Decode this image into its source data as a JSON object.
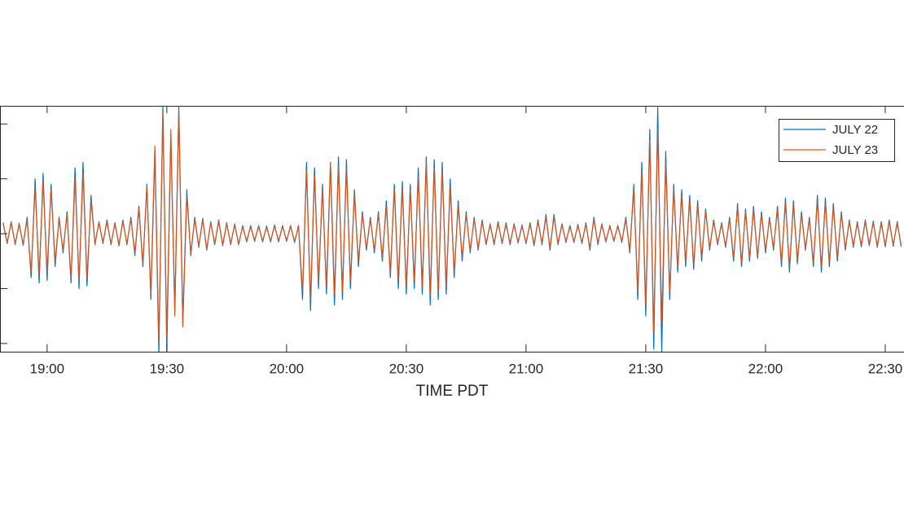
{
  "chart_data": {
    "type": "line",
    "xlabel": "TIME PDT",
    "xlim": [
      1128.2,
      1354.7
    ],
    "ylim": [
      -2.15,
      2.33
    ],
    "xticks": [
      {
        "value": 1140,
        "label": "19:00"
      },
      {
        "value": 1170,
        "label": "19:30"
      },
      {
        "value": 1200,
        "label": "20:00"
      },
      {
        "value": 1230,
        "label": "20:30"
      },
      {
        "value": 1260,
        "label": "21:00"
      },
      {
        "value": 1290,
        "label": "21:30"
      },
      {
        "value": 1320,
        "label": "22:00"
      },
      {
        "value": 1350,
        "label": "22:30"
      }
    ],
    "yticks": [
      -2,
      -1,
      0,
      1,
      2
    ],
    "legend": "northeast",
    "x": [
      1129,
      1130,
      1131,
      1132,
      1133,
      1134,
      1135,
      1136,
      1137,
      1138,
      1139,
      1140,
      1141,
      1142,
      1143,
      1144,
      1145,
      1146,
      1147,
      1148,
      1149,
      1150,
      1151,
      1152,
      1153,
      1154,
      1155,
      1156,
      1157,
      1158,
      1159,
      1160,
      1161,
      1162,
      1163,
      1164,
      1165,
      1166,
      1167,
      1168,
      1169,
      1170,
      1171,
      1172,
      1173,
      1174,
      1175,
      1176,
      1177,
      1178,
      1179,
      1180,
      1181,
      1182,
      1183,
      1184,
      1185,
      1186,
      1187,
      1188,
      1189,
      1190,
      1191,
      1192,
      1193,
      1194,
      1195,
      1196,
      1197,
      1198,
      1199,
      1200,
      1201,
      1202,
      1203,
      1204,
      1205,
      1206,
      1207,
      1208,
      1209,
      1210,
      1211,
      1212,
      1213,
      1214,
      1215,
      1216,
      1217,
      1218,
      1219,
      1220,
      1221,
      1222,
      1223,
      1224,
      1225,
      1226,
      1227,
      1228,
      1229,
      1230,
      1231,
      1232,
      1233,
      1234,
      1235,
      1236,
      1237,
      1238,
      1239,
      1240,
      1241,
      1242,
      1243,
      1244,
      1245,
      1246,
      1247,
      1248,
      1249,
      1250,
      1251,
      1252,
      1253,
      1254,
      1255,
      1256,
      1257,
      1258,
      1259,
      1260,
      1261,
      1262,
      1263,
      1264,
      1265,
      1266,
      1267,
      1268,
      1269,
      1270,
      1271,
      1272,
      1273,
      1274,
      1275,
      1276,
      1277,
      1278,
      1279,
      1280,
      1281,
      1282,
      1283,
      1284,
      1285,
      1286,
      1287,
      1288,
      1289,
      1290,
      1291,
      1292,
      1293,
      1294,
      1295,
      1296,
      1297,
      1298,
      1299,
      1300,
      1301,
      1302,
      1303,
      1304,
      1305,
      1306,
      1307,
      1308,
      1309,
      1310,
      1311,
      1312,
      1313,
      1314,
      1315,
      1316,
      1317,
      1318,
      1319,
      1320,
      1321,
      1322,
      1323,
      1324,
      1325,
      1326,
      1327,
      1328,
      1329,
      1330,
      1331,
      1332,
      1333,
      1334,
      1335,
      1336,
      1337,
      1338,
      1339,
      1340,
      1341,
      1342,
      1343,
      1344,
      1345,
      1346,
      1347,
      1348,
      1349,
      1350,
      1351,
      1352,
      1353,
      1354
    ],
    "series": [
      {
        "name": "JULY 22",
        "color": "#0072BD",
        "values": [
          0.2,
          -0.18,
          0.22,
          -0.2,
          0.19,
          -0.21,
          0.3,
          -0.8,
          1.0,
          -0.9,
          1.1,
          -0.85,
          0.9,
          -0.6,
          0.3,
          -0.35,
          0.4,
          -0.9,
          1.2,
          -1.0,
          1.3,
          -0.95,
          0.7,
          -0.2,
          0.22,
          -0.18,
          0.25,
          -0.2,
          0.2,
          -0.22,
          0.25,
          -0.2,
          0.3,
          -0.4,
          0.5,
          -0.6,
          0.9,
          -1.2,
          1.5,
          -2.2,
          2.33,
          -2.15,
          1.8,
          -1.4,
          2.33,
          -1.6,
          0.8,
          -0.4,
          0.3,
          -0.25,
          0.28,
          -0.3,
          0.22,
          -0.2,
          0.25,
          -0.22,
          0.2,
          -0.2,
          0.18,
          -0.2,
          0.15,
          -0.15,
          0.15,
          -0.14,
          0.15,
          -0.15,
          0.14,
          -0.15,
          0.16,
          -0.15,
          0.15,
          -0.14,
          0.15,
          -0.16,
          0.15,
          -1.2,
          1.3,
          -1.4,
          1.2,
          -1.0,
          0.9,
          -1.1,
          1.3,
          -1.3,
          1.4,
          -1.2,
          1.35,
          -1.0,
          0.8,
          -0.6,
          0.4,
          -0.3,
          0.3,
          -0.35,
          0.4,
          -0.5,
          0.6,
          -0.8,
          0.9,
          -1.0,
          0.95,
          -1.1,
          0.9,
          -1.0,
          1.2,
          -1.1,
          1.4,
          -1.3,
          1.35,
          -1.2,
          1.3,
          -1.1,
          1.0,
          -0.8,
          0.6,
          -0.5,
          0.4,
          -0.35,
          0.3,
          -0.3,
          0.25,
          -0.2,
          0.18,
          -0.2,
          0.22,
          -0.18,
          0.2,
          -0.2,
          0.18,
          -0.17,
          0.16,
          -0.18,
          0.2,
          -0.22,
          0.25,
          -0.2,
          0.35,
          -0.3,
          0.35,
          -0.2,
          0.18,
          -0.16,
          0.15,
          -0.16,
          0.17,
          -0.18,
          0.2,
          -0.3,
          0.3,
          -0.2,
          0.18,
          -0.15,
          0.15,
          -0.14,
          0.15,
          -0.16,
          0.3,
          -0.35,
          0.9,
          -1.2,
          1.3,
          -1.5,
          1.9,
          -2.1,
          2.3,
          -2.15,
          1.5,
          -1.2,
          0.9,
          -0.7,
          0.8,
          -0.6,
          0.7,
          -0.65,
          0.6,
          -0.5,
          0.45,
          -0.3,
          0.25,
          -0.2,
          0.2,
          -0.25,
          0.3,
          -0.5,
          0.55,
          -0.6,
          0.45,
          -0.5,
          0.5,
          -0.45,
          0.4,
          -0.35,
          0.3,
          -0.3,
          0.5,
          -0.6,
          0.65,
          -0.7,
          0.6,
          -0.55,
          0.4,
          -0.3,
          0.3,
          -0.6,
          0.7,
          -0.7,
          0.65,
          -0.6,
          0.55,
          -0.5,
          0.4,
          -0.3,
          0.25,
          -0.25,
          0.22,
          -0.24,
          0.25,
          -0.22,
          0.23,
          -0.25,
          0.22,
          -0.24,
          0.25,
          -0.23,
          0.22,
          -0.24
        ]
      },
      {
        "name": "JULY 23",
        "color": "#D95319",
        "values": [
          0.18,
          -0.16,
          0.2,
          -0.18,
          0.17,
          -0.19,
          0.25,
          -0.7,
          0.85,
          -0.75,
          0.95,
          -0.7,
          0.8,
          -0.5,
          0.25,
          -0.3,
          0.35,
          -0.8,
          1.0,
          -0.85,
          1.1,
          -0.8,
          0.6,
          -0.18,
          0.2,
          -0.16,
          0.22,
          -0.18,
          0.18,
          -0.2,
          0.22,
          -0.18,
          0.27,
          -0.35,
          0.45,
          -0.55,
          0.85,
          -1.1,
          1.6,
          -2.0,
          2.2,
          -1.9,
          1.9,
          -1.5,
          2.25,
          -1.7,
          0.7,
          -0.35,
          0.26,
          -0.22,
          0.25,
          -0.27,
          0.2,
          -0.18,
          0.22,
          -0.2,
          0.18,
          -0.18,
          0.16,
          -0.18,
          0.13,
          -0.13,
          0.13,
          -0.12,
          0.13,
          -0.13,
          0.12,
          -0.13,
          0.14,
          -0.13,
          0.13,
          -0.12,
          0.13,
          -0.14,
          0.13,
          -1.05,
          1.15,
          -1.2,
          1.05,
          -0.85,
          0.8,
          -0.95,
          1.3,
          -1.1,
          1.25,
          -1.05,
          1.2,
          -0.85,
          0.7,
          -0.5,
          0.35,
          -0.26,
          0.26,
          -0.3,
          0.35,
          -0.42,
          0.5,
          -0.7,
          0.8,
          -0.85,
          0.82,
          -0.95,
          0.8,
          -0.85,
          1.05,
          -0.95,
          1.3,
          -1.1,
          1.2,
          -1.05,
          1.15,
          -0.95,
          0.85,
          -0.7,
          0.5,
          -0.42,
          0.35,
          -0.3,
          0.26,
          -0.26,
          0.22,
          -0.17,
          0.16,
          -0.17,
          0.19,
          -0.16,
          0.17,
          -0.17,
          0.16,
          -0.15,
          0.14,
          -0.16,
          0.17,
          -0.19,
          0.22,
          -0.17,
          0.3,
          -0.26,
          0.3,
          -0.17,
          0.16,
          -0.14,
          0.13,
          -0.14,
          0.15,
          -0.16,
          0.17,
          -0.26,
          0.26,
          -0.17,
          0.16,
          -0.13,
          0.13,
          -0.12,
          0.13,
          -0.14,
          0.26,
          -0.3,
          0.8,
          -1.05,
          1.15,
          -1.3,
          1.7,
          -1.8,
          1.9,
          -1.6,
          1.3,
          -1.05,
          0.8,
          -0.6,
          0.7,
          -0.52,
          0.6,
          -0.56,
          0.52,
          -0.43,
          0.4,
          -0.26,
          0.22,
          -0.17,
          0.17,
          -0.22,
          0.26,
          -0.43,
          0.48,
          -0.52,
          0.4,
          -0.43,
          0.43,
          -0.4,
          0.35,
          -0.3,
          0.26,
          -0.26,
          0.43,
          -0.52,
          0.56,
          -0.6,
          0.52,
          -0.48,
          0.35,
          -0.26,
          0.26,
          -0.52,
          0.6,
          -0.6,
          0.56,
          -0.52,
          0.48,
          -0.43,
          0.35,
          -0.26,
          0.22,
          -0.22,
          0.19,
          -0.21,
          0.22,
          -0.19,
          0.2,
          -0.22,
          0.19,
          -0.21,
          0.22,
          -0.2,
          0.19,
          -0.21
        ]
      }
    ]
  }
}
